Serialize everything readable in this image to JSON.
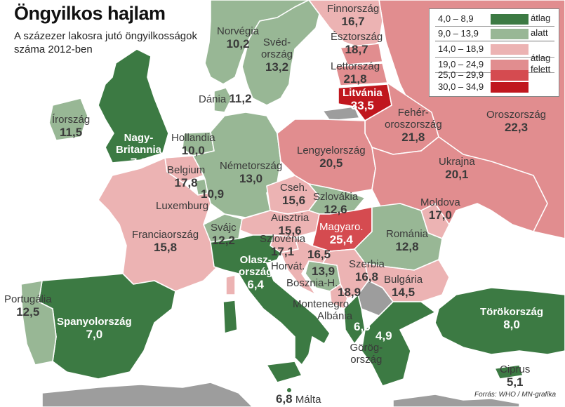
{
  "header": {
    "title": "Öngyilkos hajlam",
    "subtitle": "A százezer lakosra jutó öngyilkosságok száma 2012-ben"
  },
  "source": "Forrás: WHO / MN-grafika",
  "legend": {
    "rows": [
      {
        "range": "4,0  –  8,9",
        "color": "#3c7a43"
      },
      {
        "range": "9,0  – 13,9",
        "color": "#98b795"
      },
      {
        "range": "14,0  – 18,9",
        "color": "#ecb3b3"
      },
      {
        "range": "19,0  – 24,9",
        "color": "#e18d8f"
      },
      {
        "range": "25,0  – 29,9",
        "color": "#d54b50"
      },
      {
        "range": "30,0  – 34,9",
        "color": "#c0171e"
      }
    ],
    "group_low_1": "átlag",
    "group_low_2": "alatt",
    "group_high_1": "átlag",
    "group_high_2": "felett"
  },
  "countries": [
    {
      "name": "Finnország",
      "value": "16,7"
    },
    {
      "name": "Norvégia",
      "value": "10,2"
    },
    {
      "name": "Svéd-\nország",
      "value": "13,2"
    },
    {
      "name": "Észtország",
      "value": "18,7"
    },
    {
      "name": "Lettország",
      "value": "21,8"
    },
    {
      "name": "Litvánia",
      "value": "33,5"
    },
    {
      "name": "Dánia",
      "value": "11,2"
    },
    {
      "name": "Írország",
      "value": "11,5"
    },
    {
      "name": "Nagy-\nBritannia",
      "value": "7,0"
    },
    {
      "name": "Hollandia",
      "value": "10,0"
    },
    {
      "name": "Belgium",
      "value": "17,8"
    },
    {
      "name": "Luxemburg",
      "value": "10,9"
    },
    {
      "name": "Németország",
      "value": "13,0"
    },
    {
      "name": "Fehér-\noroszország",
      "value": "21,8"
    },
    {
      "name": "Oroszország",
      "value": "22,3"
    },
    {
      "name": "Lengyelország",
      "value": "20,5"
    },
    {
      "name": "Ukrajna",
      "value": "20,1"
    },
    {
      "name": "Cseh.",
      "value": "15,6"
    },
    {
      "name": "Szlovákia",
      "value": "12,6"
    },
    {
      "name": "Moldova",
      "value": "17,0"
    },
    {
      "name": "Franciaország",
      "value": "15,8"
    },
    {
      "name": "Svájc",
      "value": "12,2"
    },
    {
      "name": "Ausztria",
      "value": "15,6"
    },
    {
      "name": "Magyaro.",
      "value": "25,4"
    },
    {
      "name": "Románia",
      "value": "12,8"
    },
    {
      "name": "Szlovénia",
      "value": "17,1"
    },
    {
      "name": "Olasz-\nország",
      "value": "6,4"
    },
    {
      "name": "Horvát.",
      "value": "16,5"
    },
    {
      "name": "Szerbia",
      "value": "16,8"
    },
    {
      "name": "Bosznia-H.",
      "value": "13,9"
    },
    {
      "name": "Bulgária",
      "value": "14,5"
    },
    {
      "name": "Montenegro",
      "value": "18,9"
    },
    {
      "name": "Albánia",
      "value": "6,5"
    },
    {
      "name": "Portugália",
      "value": "12,5"
    },
    {
      "name": "Spanyolország",
      "value": "7,0"
    },
    {
      "name": "Törökország",
      "value": "8,0"
    },
    {
      "name": "Görög-\nország",
      "value": "4,9"
    },
    {
      "name": "Ciprus",
      "value": "5,1"
    },
    {
      "name": "Málta",
      "value": "6,8"
    }
  ]
}
